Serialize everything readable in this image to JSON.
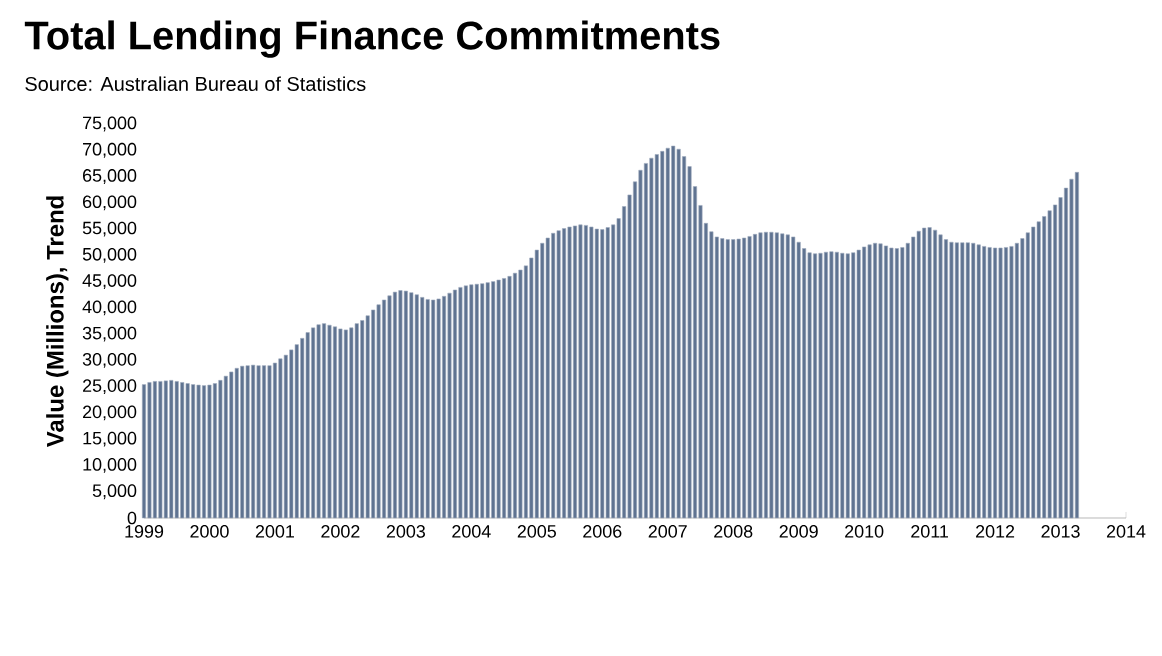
{
  "chart_data": {
    "type": "bar",
    "title": "Total Lending Finance Commitments",
    "annotations": [
      "Source: Australian Bureau of Statistics"
    ],
    "ylabel": "Value (Millions), Trend",
    "x": [
      "1999-01",
      "1999-02",
      "1999-03",
      "1999-04",
      "1999-05",
      "1999-06",
      "1999-07",
      "1999-08",
      "1999-09",
      "1999-10",
      "1999-11",
      "1999-12",
      "2000-01",
      "2000-02",
      "2000-03",
      "2000-04",
      "2000-05",
      "2000-06",
      "2000-07",
      "2000-08",
      "2000-09",
      "2000-10",
      "2000-11",
      "2000-12",
      "2001-01",
      "2001-02",
      "2001-03",
      "2001-04",
      "2001-05",
      "2001-06",
      "2001-07",
      "2001-08",
      "2001-09",
      "2001-10",
      "2001-11",
      "2001-12",
      "2002-01",
      "2002-02",
      "2002-03",
      "2002-04",
      "2002-05",
      "2002-06",
      "2002-07",
      "2002-08",
      "2002-09",
      "2002-10",
      "2002-11",
      "2002-12",
      "2003-01",
      "2003-02",
      "2003-03",
      "2003-04",
      "2003-05",
      "2003-06",
      "2003-07",
      "2003-08",
      "2003-09",
      "2003-10",
      "2003-11",
      "2003-12",
      "2004-01",
      "2004-02",
      "2004-03",
      "2004-04",
      "2004-05",
      "2004-06",
      "2004-07",
      "2004-08",
      "2004-09",
      "2004-10",
      "2004-11",
      "2004-12",
      "2005-01",
      "2005-02",
      "2005-03",
      "2005-04",
      "2005-05",
      "2005-06",
      "2005-07",
      "2005-08",
      "2005-09",
      "2005-10",
      "2005-11",
      "2005-12",
      "2006-01",
      "2006-02",
      "2006-03",
      "2006-04",
      "2006-05",
      "2006-06",
      "2006-07",
      "2006-08",
      "2006-09",
      "2006-10",
      "2006-11",
      "2006-12",
      "2007-01",
      "2007-02",
      "2007-03",
      "2007-04",
      "2007-05",
      "2007-06",
      "2007-07",
      "2007-08",
      "2007-09",
      "2007-10",
      "2007-11",
      "2007-12",
      "2008-01",
      "2008-02",
      "2008-03",
      "2008-04",
      "2008-05",
      "2008-06",
      "2008-07",
      "2008-08",
      "2008-09",
      "2008-10",
      "2008-11",
      "2008-12",
      "2009-01",
      "2009-02",
      "2009-03",
      "2009-04",
      "2009-05",
      "2009-06",
      "2009-07",
      "2009-08",
      "2009-09",
      "2009-10",
      "2009-11",
      "2009-12",
      "2010-01",
      "2010-02",
      "2010-03",
      "2010-04",
      "2010-05",
      "2010-06",
      "2010-07",
      "2010-08",
      "2010-09",
      "2010-10",
      "2010-11",
      "2010-12",
      "2011-01",
      "2011-02",
      "2011-03",
      "2011-04",
      "2011-05",
      "2011-06",
      "2011-07",
      "2011-08",
      "2011-09",
      "2011-10",
      "2011-11",
      "2011-12",
      "2012-01",
      "2012-02",
      "2012-03",
      "2012-04",
      "2012-05",
      "2012-06",
      "2012-07",
      "2012-08",
      "2012-09",
      "2012-10",
      "2012-11",
      "2012-12",
      "2013-01",
      "2013-02",
      "2013-03",
      "2013-04"
    ],
    "values": [
      25400,
      25800,
      26000,
      26000,
      26100,
      26200,
      26000,
      25800,
      25600,
      25400,
      25300,
      25200,
      25300,
      25600,
      26200,
      27000,
      27800,
      28500,
      28900,
      29000,
      29100,
      29000,
      29000,
      29000,
      29500,
      30300,
      31000,
      32000,
      33000,
      34200,
      35300,
      36200,
      36800,
      37000,
      36700,
      36400,
      36000,
      35800,
      36200,
      37000,
      37600,
      38500,
      39600,
      40600,
      41500,
      42300,
      43000,
      43300,
      43200,
      42900,
      42500,
      42000,
      41600,
      41500,
      41700,
      42200,
      42800,
      43400,
      43900,
      44200,
      44400,
      44500,
      44600,
      44800,
      45000,
      45300,
      45600,
      46000,
      46600,
      47200,
      48000,
      49500,
      51000,
      52300,
      53300,
      54200,
      54700,
      55100,
      55400,
      55600,
      55800,
      55700,
      55400,
      55000,
      54900,
      55300,
      55800,
      57000,
      59300,
      61500,
      64000,
      66200,
      67500,
      68500,
      69200,
      69800,
      70400,
      70800,
      70200,
      68800,
      66900,
      63100,
      59500,
      56100,
      54500,
      53500,
      53200,
      53000,
      53000,
      53100,
      53300,
      53600,
      54000,
      54300,
      54400,
      54400,
      54300,
      54100,
      53900,
      53500,
      52500,
      51300,
      50500,
      50300,
      50400,
      50600,
      50700,
      50600,
      50400,
      50300,
      50500,
      51000,
      51600,
      52000,
      52300,
      52200,
      51800,
      51400,
      51300,
      51500,
      52300,
      53500,
      54600,
      55200,
      55300,
      54800,
      53900,
      53000,
      52500,
      52400,
      52400,
      52400,
      52300,
      52000,
      51700,
      51500,
      51400,
      51400,
      51500,
      51700,
      52300,
      53200,
      54300,
      55400,
      56400,
      57400,
      58500,
      59600,
      61000,
      62800,
      64500,
      65800
    ],
    "color": "#5f7391",
    "xlim": [
      "1999",
      "2014"
    ],
    "xticks": [
      "1999",
      "2000",
      "2001",
      "2002",
      "2003",
      "2004",
      "2005",
      "2006",
      "2007",
      "2008",
      "2009",
      "2010",
      "2011",
      "2012",
      "2013",
      "2014"
    ],
    "ylim": [
      0,
      75000
    ],
    "yticks": [
      0,
      {
        "value": 5000,
        "label": "5,000"
      },
      {
        "value": 10000,
        "label": "10,000"
      },
      {
        "value": 15000,
        "label": "15,000"
      },
      {
        "value": 20000,
        "label": "20,000"
      },
      {
        "value": 25000,
        "label": "25,000"
      },
      {
        "value": 30000,
        "label": "30,000"
      },
      {
        "value": 35000,
        "label": "35,000"
      },
      {
        "value": 40000,
        "label": "40,000"
      },
      {
        "value": 45000,
        "label": "45,000"
      },
      {
        "value": 50000,
        "label": "50,000"
      },
      {
        "value": 55000,
        "label": "55,000"
      },
      {
        "value": 60000,
        "label": "60,000"
      },
      {
        "value": 65000,
        "label": "65,000"
      },
      {
        "value": 70000,
        "label": "70,000"
      },
      {
        "value": 75000,
        "label": "75,000"
      }
    ]
  }
}
